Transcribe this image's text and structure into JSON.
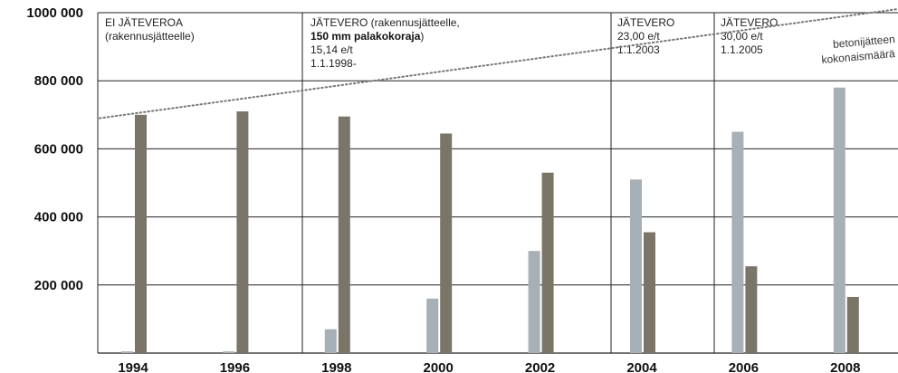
{
  "chart_data": {
    "type": "bar",
    "title": "",
    "xlabel": "",
    "ylabel": "",
    "categories": [
      "1994",
      "1996",
      "1998",
      "2000",
      "2002",
      "2004",
      "2006",
      "2008"
    ],
    "series": [
      {
        "color": "#a6b0b6",
        "values": [
          5000,
          5000,
          70000,
          160000,
          300000,
          510000,
          650000,
          780000
        ]
      },
      {
        "color": "#7b7468",
        "values": [
          700000,
          710000,
          695000,
          645000,
          530000,
          355000,
          255000,
          165000
        ]
      }
    ],
    "trend": {
      "label_line1": "betonijätteen",
      "label_line2": "kokonaismäärä",
      "style": "dotted",
      "color": "#777777",
      "start": {
        "x": "1994",
        "y": 690000
      },
      "end": {
        "x": "2008",
        "y": 1010000
      }
    },
    "ylim": [
      0,
      1000000
    ],
    "yticks": [
      {
        "value": 200000,
        "label": "200 000"
      },
      {
        "value": 400000,
        "label": "400 000"
      },
      {
        "value": 600000,
        "label": "600 000"
      },
      {
        "value": 800000,
        "label": "800 000"
      },
      {
        "value": 1000000,
        "label": "1000 000"
      }
    ],
    "grid": true,
    "periods": [
      {
        "line1": "EI JÄTEVEROA",
        "line2": "(rakennusjätteelle)"
      },
      {
        "line1": "JÄTEVERO (rakennusjätteelle,",
        "line2_bold": "150 mm palakokoraja",
        "line2_tail": ")",
        "line3": "15,14 e/t",
        "line4": "1.1.1998-"
      },
      {
        "line1": "JÄTEVERO",
        "line2": "23,00 e/t",
        "line3": "1.1.2003"
      },
      {
        "line1": "JÄTEVERO",
        "line2": "30,00 e/t",
        "line3": "1.1.2005"
      }
    ]
  }
}
